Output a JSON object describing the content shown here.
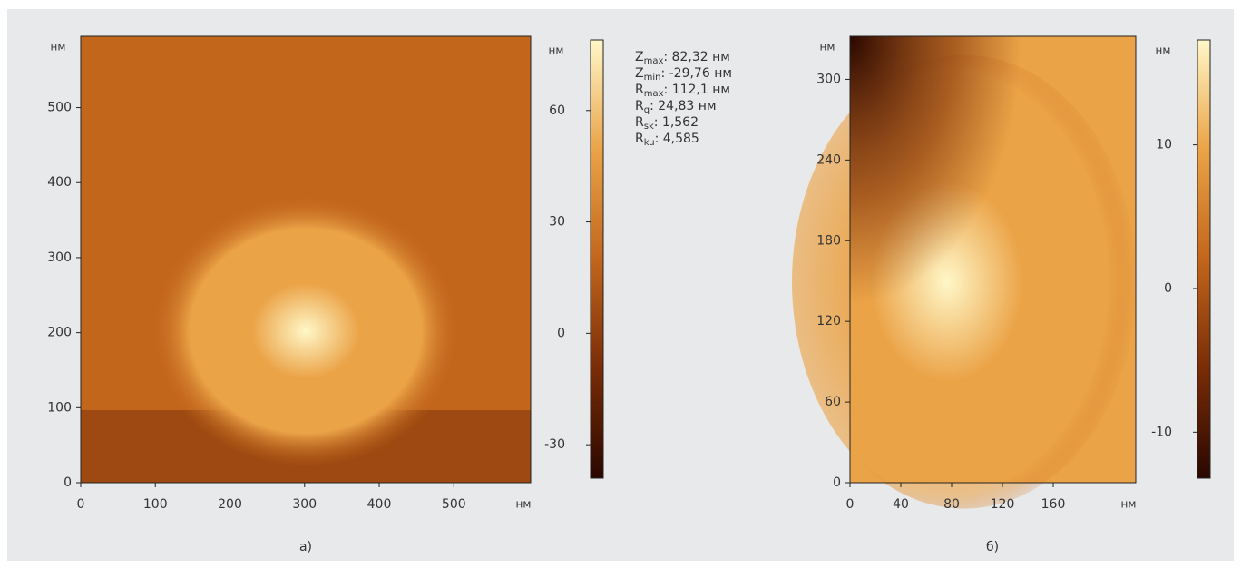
{
  "chart_data": [
    {
      "type": "image",
      "xlabel": "нм",
      "ylabel": "нм",
      "xlim": [
        0,
        603
      ],
      "ylim": [
        0,
        595
      ],
      "xticks": [
        0,
        100,
        200,
        300,
        400,
        500
      ],
      "yticks": [
        0,
        100,
        200,
        300,
        400,
        500
      ],
      "colorbar_label": "нм",
      "clim": [
        -39,
        79
      ],
      "cticks": [
        -30,
        0,
        30,
        60
      ],
      "colormap": [
        "#2a0700",
        "#7a2c06",
        "#c2661c",
        "#eba347",
        "#fff7c8"
      ],
      "caption": "а)",
      "stats": [
        {
          "symbol": "Z",
          "subscript": "max",
          "text": ": 82,32 нм"
        },
        {
          "symbol": "Z",
          "subscript": "min",
          "text": ": -29,76 нм"
        },
        {
          "symbol": "R",
          "subscript": "max",
          "text": ": 112,1 нм"
        },
        {
          "symbol": "R",
          "subscript": "q",
          "text": ": 24,83 нм"
        },
        {
          "symbol": "R",
          "subscript": "sk",
          "text": ": 1,562"
        },
        {
          "symbol": "R",
          "subscript": "ku",
          "text": ": 4,585"
        }
      ]
    },
    {
      "type": "image",
      "xlabel": "нм",
      "ylabel": "нм",
      "xlim": [
        0,
        225
      ],
      "ylim": [
        0,
        332
      ],
      "xticks": [
        0,
        40,
        80,
        120,
        160
      ],
      "yticks": [
        0,
        60,
        120,
        180,
        240,
        300
      ],
      "colorbar_label": "нм",
      "clim": [
        -13.2,
        17.3
      ],
      "cticks": [
        -10,
        0,
        10
      ],
      "colormap": [
        "#2a0700",
        "#7a2c06",
        "#c2661c",
        "#eba347",
        "#fff7c8"
      ],
      "caption": "б)"
    }
  ]
}
